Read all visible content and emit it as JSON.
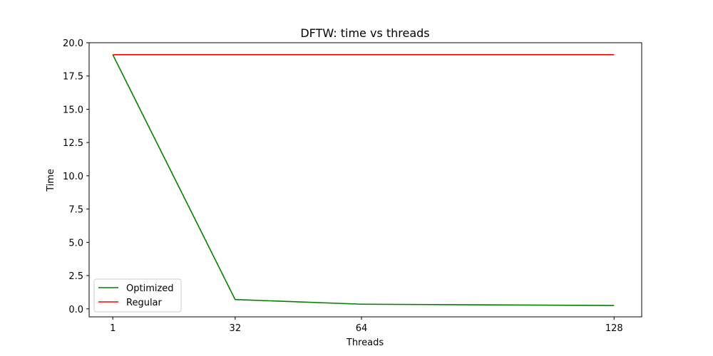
{
  "chart_data": {
    "type": "line",
    "title": "DFTW: time vs threads",
    "xlabel": "Threads",
    "ylabel": "Time",
    "x": [
      1,
      32,
      64,
      128
    ],
    "xlim": [
      -5,
      135
    ],
    "ylim": [
      -0.6,
      20.0
    ],
    "xticks": [
      1,
      32,
      64,
      128
    ],
    "yticks": [
      0.0,
      2.5,
      5.0,
      7.5,
      10.0,
      12.5,
      15.0,
      17.5,
      20.0
    ],
    "ytick_labels": [
      "0.0",
      "2.5",
      "5.0",
      "7.5",
      "10.0",
      "12.5",
      "15.0",
      "17.5",
      "20.0"
    ],
    "grid": false,
    "legend_position": "lower-left",
    "series": [
      {
        "name": "Optimized",
        "color": "#008000",
        "values": [
          19.1,
          0.7,
          0.35,
          0.25
        ]
      },
      {
        "name": "Regular",
        "color": "#ff0000",
        "values": [
          19.1,
          19.1,
          19.1,
          19.1
        ]
      }
    ]
  }
}
